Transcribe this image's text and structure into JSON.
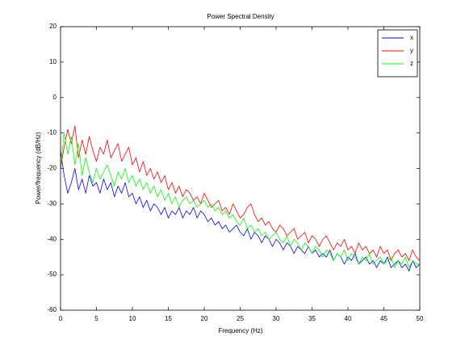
{
  "chart_data": {
    "type": "line",
    "title": "Power Spectral Density",
    "x_label": "Frequency (Hz)",
    "y_label": "Power/frequency (dB/Hz)",
    "x": [
      0,
      0.5,
      1,
      1.5,
      2,
      2.5,
      3,
      3.5,
      4,
      4.5,
      5,
      5.5,
      6,
      6.5,
      7,
      7.5,
      8,
      8.5,
      9,
      9.5,
      10,
      10.5,
      11,
      11.5,
      12,
      12.5,
      13,
      13.5,
      14,
      14.5,
      15,
      15.5,
      16,
      16.5,
      17,
      17.5,
      18,
      18.5,
      19,
      19.5,
      20,
      20.5,
      21,
      21.5,
      22,
      22.5,
      23,
      23.5,
      24,
      24.5,
      25,
      25.5,
      26,
      26.5,
      27,
      27.5,
      28,
      28.5,
      29,
      29.5,
      30,
      30.5,
      31,
      31.5,
      32,
      32.5,
      33,
      33.5,
      34,
      34.5,
      35,
      35.5,
      36,
      36.5,
      37,
      37.5,
      38,
      38.5,
      39,
      39.5,
      40,
      40.5,
      41,
      41.5,
      42,
      42.5,
      43,
      43.5,
      44,
      44.5,
      45,
      45.5,
      46,
      46.5,
      47,
      47.5,
      48,
      48.5,
      49,
      49.5,
      50
    ],
    "series": [
      {
        "name": "x",
        "color": "#0000ff",
        "values": [
          -15,
          -22,
          -27,
          -24,
          -20,
          -26,
          -23,
          -27,
          -22,
          -25,
          -24,
          -27,
          -23,
          -26,
          -24,
          -28,
          -25,
          -27,
          -24,
          -28,
          -27,
          -30,
          -28,
          -31,
          -29,
          -32,
          -30,
          -31,
          -33,
          -31,
          -34,
          -32,
          -33,
          -31,
          -34,
          -32,
          -33,
          -31,
          -34,
          -32,
          -33,
          -35,
          -34,
          -36,
          -35,
          -37,
          -36,
          -38,
          -37,
          -36,
          -38,
          -39,
          -37,
          -40,
          -38,
          -39,
          -41,
          -39,
          -40,
          -42,
          -40,
          -41,
          -43,
          -41,
          -42,
          -44,
          -42,
          -43,
          -44,
          -42,
          -44,
          -43,
          -45,
          -44,
          -45,
          -43,
          -46,
          -44,
          -45,
          -47,
          -45,
          -46,
          -44,
          -47,
          -46,
          -45,
          -47,
          -46,
          -48,
          -46,
          -47,
          -45,
          -48,
          -47,
          -46,
          -48,
          -47,
          -49,
          -46,
          -48,
          -47
        ]
      },
      {
        "name": "y",
        "color": "#ff0000",
        "values": [
          -20,
          -14,
          -9,
          -13,
          -8,
          -17,
          -12,
          -16,
          -11,
          -15,
          -18,
          -14,
          -16,
          -12,
          -17,
          -15,
          -13,
          -18,
          -16,
          -14,
          -19,
          -17,
          -21,
          -18,
          -22,
          -20,
          -23,
          -21,
          -24,
          -22,
          -26,
          -24,
          -27,
          -25,
          -28,
          -26,
          -27,
          -29,
          -28,
          -30,
          -27,
          -29,
          -31,
          -30,
          -29,
          -32,
          -31,
          -33,
          -30,
          -32,
          -34,
          -33,
          -31,
          -30,
          -33,
          -35,
          -34,
          -36,
          -35,
          -37,
          -38,
          -36,
          -37,
          -39,
          -38,
          -37,
          -40,
          -39,
          -38,
          -41,
          -39,
          -40,
          -42,
          -40,
          -39,
          -41,
          -43,
          -41,
          -42,
          -40,
          -43,
          -42,
          -44,
          -41,
          -43,
          -42,
          -44,
          -43,
          -45,
          -42,
          -44,
          -43,
          -46,
          -44,
          -43,
          -45,
          -44,
          -46,
          -43,
          -45,
          -46
        ]
      },
      {
        "name": "z",
        "color": "#00ff00",
        "values": [
          -20,
          -10,
          -16,
          -11,
          -19,
          -13,
          -22,
          -17,
          -21,
          -24,
          -20,
          -23,
          -21,
          -19,
          -22,
          -25,
          -21,
          -23,
          -20,
          -24,
          -22,
          -25,
          -23,
          -26,
          -24,
          -27,
          -25,
          -28,
          -26,
          -29,
          -27,
          -30,
          -28,
          -31,
          -29,
          -28,
          -30,
          -29,
          -31,
          -30,
          -29,
          -31,
          -30,
          -32,
          -31,
          -33,
          -32,
          -34,
          -33,
          -35,
          -36,
          -34,
          -37,
          -36,
          -38,
          -37,
          -39,
          -38,
          -40,
          -39,
          -38,
          -40,
          -41,
          -39,
          -42,
          -40,
          -41,
          -43,
          -41,
          -42,
          -44,
          -42,
          -43,
          -45,
          -43,
          -44,
          -46,
          -44,
          -45,
          -43,
          -46,
          -44,
          -45,
          -47,
          -45,
          -46,
          -44,
          -47,
          -46,
          -45,
          -47,
          -46,
          -45,
          -48,
          -46,
          -47,
          -45,
          -48,
          -46,
          -47,
          -47
        ]
      }
    ],
    "xlim": [
      0,
      50
    ],
    "xticks": [
      0,
      5,
      10,
      15,
      20,
      25,
      30,
      35,
      40,
      45,
      50
    ],
    "ylim": [
      -60,
      20
    ],
    "yticks": [
      -60,
      -50,
      -40,
      -30,
      -20,
      -10,
      0,
      10,
      20
    ],
    "grid": false,
    "legend": "upper right"
  }
}
